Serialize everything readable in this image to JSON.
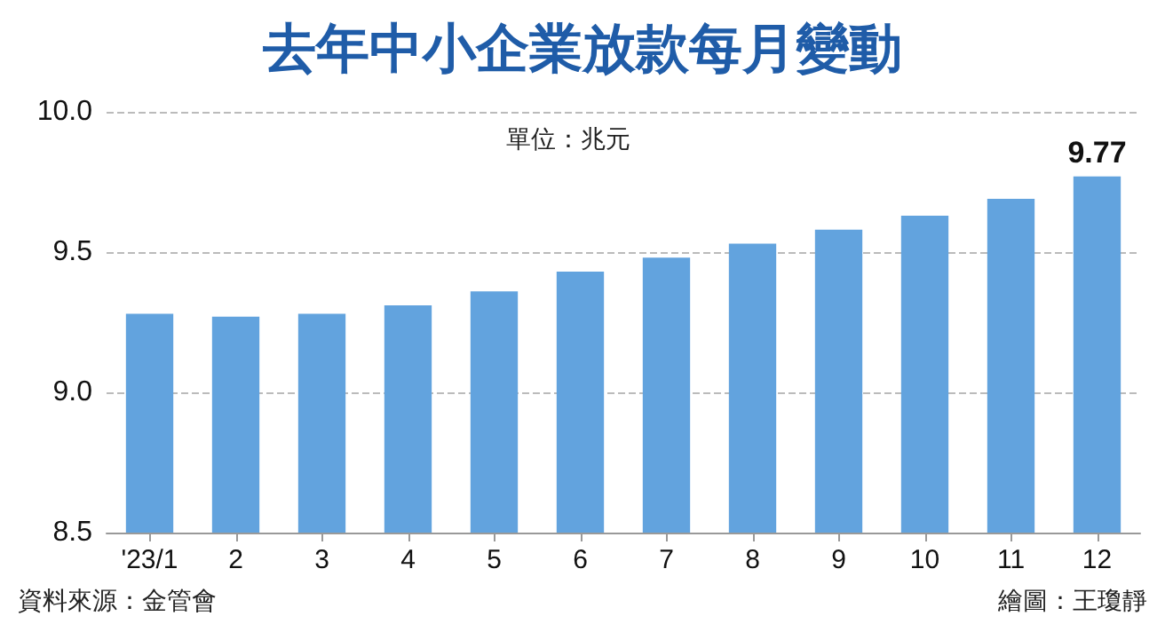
{
  "chart_data": {
    "type": "bar",
    "title": "去年中小企業放款每月變動",
    "categories": [
      "'23/1",
      "2",
      "3",
      "4",
      "5",
      "6",
      "7",
      "8",
      "9",
      "10",
      "11",
      "12"
    ],
    "values": [
      9.28,
      9.27,
      9.28,
      9.31,
      9.36,
      9.43,
      9.48,
      9.53,
      9.58,
      9.63,
      9.69,
      9.77
    ],
    "color": "#62a3de",
    "value_labels": [
      null,
      null,
      null,
      null,
      null,
      null,
      null,
      null,
      null,
      null,
      null,
      "9.77"
    ],
    "ylim": [
      8.5,
      10.0
    ],
    "yticks": [
      {
        "value": 8.5,
        "label": "8.5"
      },
      {
        "value": 9.0,
        "label": "9.0"
      },
      {
        "value": 9.5,
        "label": "9.5"
      },
      {
        "value": 10.0,
        "label": "10.0"
      }
    ],
    "grid": "y",
    "annotations": [
      "單位：兆元",
      "資料來源：金管會",
      "繪圖：王瓊靜"
    ]
  }
}
